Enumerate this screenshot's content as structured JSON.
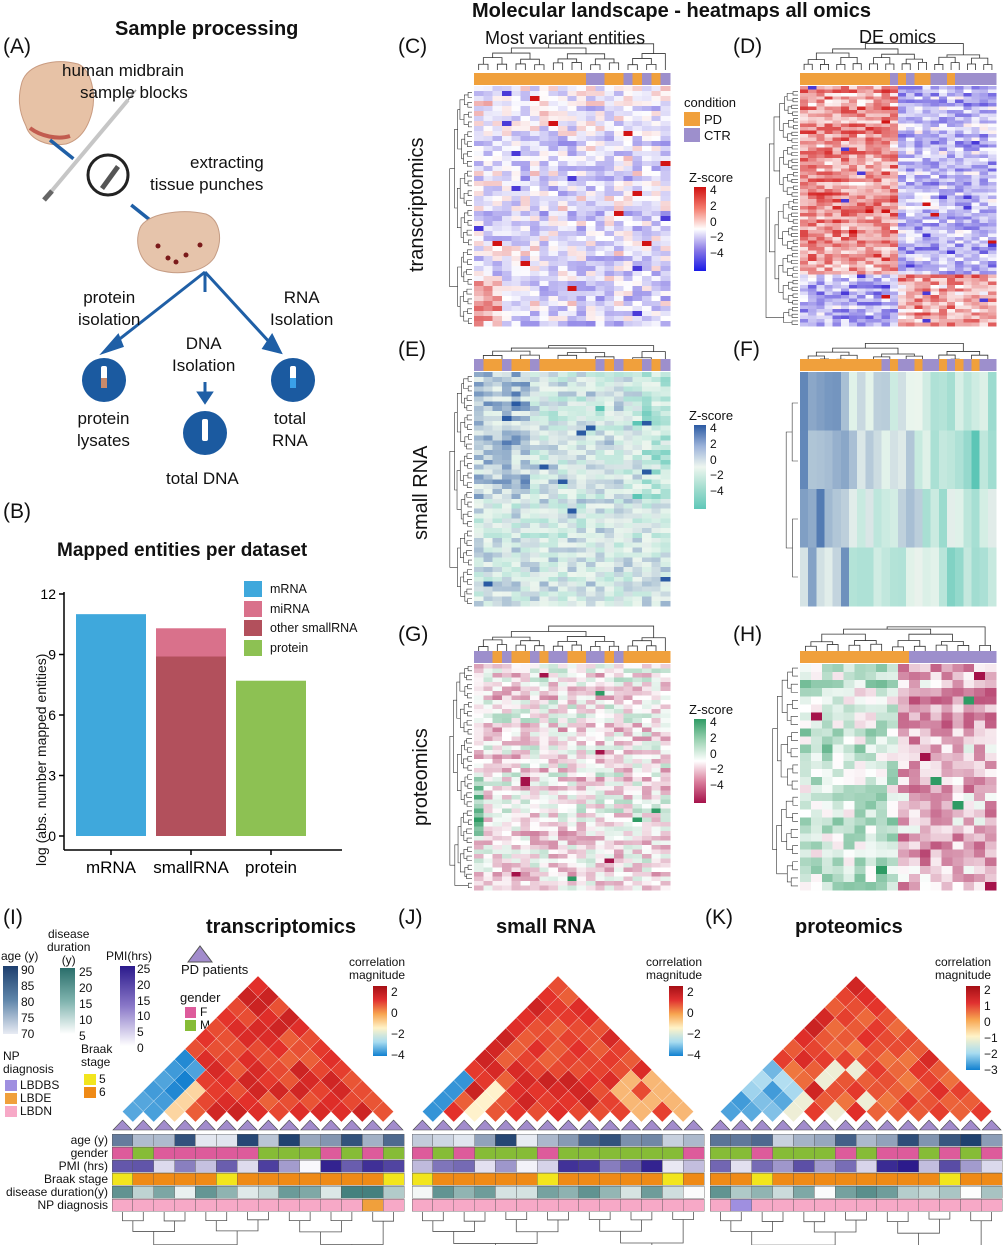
{
  "sample_panel": {
    "label": "(A)",
    "title": "Sample processing",
    "step1": [
      "human midbrain",
      "sample blocks"
    ],
    "step2": [
      "extracting",
      "tissue punches"
    ],
    "branch_protein": [
      "protein",
      "isolation"
    ],
    "branch_dna": [
      "DNA",
      "Isolation"
    ],
    "branch_rna": [
      "RNA",
      "Isolation"
    ],
    "out_protein": [
      "protein",
      "lysates"
    ],
    "out_dna": "total DNA",
    "out_rna": [
      "total",
      "RNA"
    ]
  },
  "bar_panel": {
    "label": "(B)",
    "chart_data": {
      "type": "bar",
      "title": "Mapped entities per dataset",
      "ylabel": "log (abs. number mapped entities)",
      "categories": [
        "mRNA",
        "smallRNA",
        "protein"
      ],
      "ylim": [
        0,
        12
      ],
      "yticks": [
        "0",
        "3",
        "6",
        "9",
        "12"
      ],
      "series": [
        {
          "name": "mRNA",
          "color": "#3fa8dc",
          "values": [
            11,
            null,
            null
          ]
        },
        {
          "name": "miRNA",
          "color": "#d9718b",
          "values": [
            null,
            10.3,
            null
          ]
        },
        {
          "name": "other smallRNA",
          "color": "#b2505c",
          "values": [
            null,
            8.9,
            null
          ]
        },
        {
          "name": "protein",
          "color": "#8dc153",
          "values": [
            null,
            null,
            7.7
          ]
        }
      ]
    }
  },
  "heatmaps": {
    "title": "Molecular landscape - heatmaps all omics",
    "col_left": "Most variant entities",
    "col_right": "DE omics",
    "rows": [
      "transcriptomics",
      "small RNA",
      "proteomics"
    ],
    "labels": [
      "(C)",
      "(D)",
      "(E)",
      "(F)",
      "(G)",
      "(H)"
    ],
    "condition_title": "condition",
    "conditions": [
      {
        "name": "PD",
        "color": "#f0a03c"
      },
      {
        "name": "CTR",
        "color": "#9d8fcc"
      }
    ],
    "zscore_title": "Z-score",
    "zscore_ticks": [
      "4",
      "2",
      "0",
      "−2",
      "−4"
    ]
  },
  "correlation": {
    "labels": [
      "(I)",
      "(J)",
      "(K)"
    ],
    "titles": [
      "transcriptomics",
      "small RNA",
      "proteomics"
    ],
    "legend_title": [
      "correlation",
      "magnitude"
    ],
    "ticks_i": [
      "2",
      "0",
      "−2",
      "−4"
    ],
    "ticks_j": [
      "2",
      "0",
      "−2",
      "−4"
    ],
    "ticks_k": [
      "2",
      "1",
      "0",
      "−1",
      "−2",
      "−3"
    ],
    "pd_patients": "PD patients",
    "age_title": "age (y)",
    "age_ticks": [
      "90",
      "85",
      "80",
      "75",
      "70"
    ],
    "dd_title": [
      "disease",
      "duration",
      "(y)"
    ],
    "dd_ticks": [
      "25",
      "20",
      "15",
      "10",
      "5"
    ],
    "pmi_title": "PMI(hrs)",
    "pmi_ticks": [
      "25",
      "20",
      "15",
      "10",
      "5",
      "0"
    ],
    "gender_title": "gender",
    "genders": [
      {
        "name": "F",
        "color": "#dd5b9b"
      },
      {
        "name": "M",
        "color": "#86bc36"
      }
    ],
    "np_title": [
      "NP",
      "diagnosis"
    ],
    "np": [
      {
        "name": "LBDBS",
        "color": "#9f8fe0"
      },
      {
        "name": "LBDE",
        "color": "#f0a03c"
      },
      {
        "name": "LBDN",
        "color": "#f7a9c7"
      }
    ],
    "braak_title": [
      "Braak",
      "stage"
    ],
    "braak": [
      {
        "name": "5",
        "color": "#f2e51d"
      },
      {
        "name": "6",
        "color": "#ef8a16"
      }
    ],
    "track_names": [
      "age (y)",
      "gender",
      "PMI (hrs)",
      "Braak stage",
      "disease duration(y)",
      "NP diagnosis"
    ]
  }
}
